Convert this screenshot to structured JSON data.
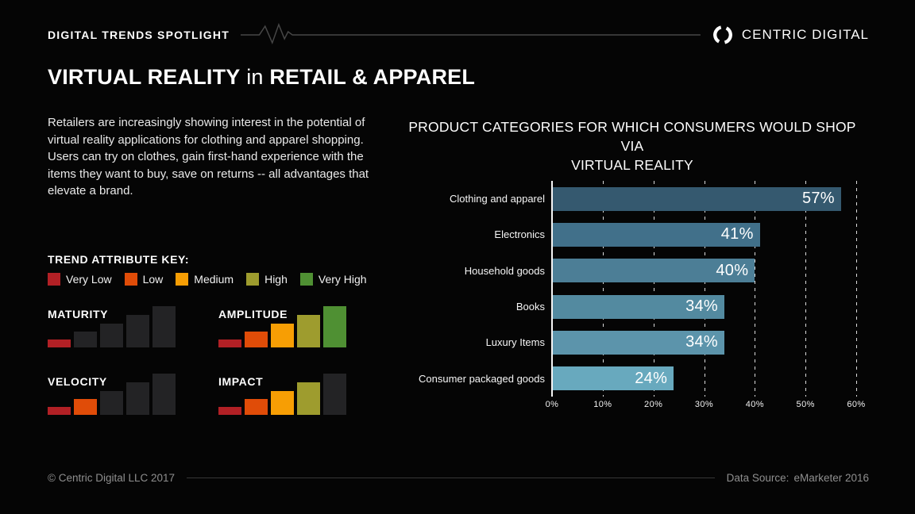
{
  "header": {
    "eyebrow": "DIGITAL TRENDS SPOTLIGHT",
    "brand": "CENTRIC DIGITAL"
  },
  "title": {
    "bold1": "VIRTUAL REALITY",
    "mid": "in",
    "bold2": "RETAIL & APPAREL"
  },
  "intro": "Retailers are increasingly showing interest in the potential of virtual reality applications for clothing and apparel shopping. Users can try on clothes, gain first-hand experience with the items they want to buy, save on returns -- all advantages that elevate a brand.",
  "trend_key": {
    "title": "TREND ATTRIBUTE KEY:"
  },
  "chart_display": {
    "title_line1": "PRODUCT CATEGORIES FOR WHICH CONSUMERS WOULD SHOP VIA",
    "title_line2": "VIRTUAL REALITY"
  },
  "chart_data": [
    {
      "type": "bar",
      "orientation": "horizontal",
      "title": "PRODUCT CATEGORIES FOR WHICH CONSUMERS WOULD SHOP VIA VIRTUAL REALITY",
      "categories": [
        "Clothing and apparel",
        "Electronics",
        "Household goods",
        "Books",
        "Luxury Items",
        "Consumer packaged goods"
      ],
      "values": [
        57,
        41,
        40,
        34,
        34,
        24
      ],
      "value_labels": [
        "57%",
        "41%",
        "40%",
        "34%",
        "34%",
        "24%"
      ],
      "bar_colors": [
        "#35596f",
        "#41708a",
        "#4c7e96",
        "#538aa0",
        "#5c94ab",
        "#68a9be"
      ],
      "xlabel": "",
      "ylabel": "",
      "xlim": [
        0,
        60
      ],
      "x_ticks": [
        "0%",
        "10%",
        "20%",
        "30%",
        "40%",
        "50%",
        "60%"
      ],
      "grid": "dashed vertical gridlines every 10%, solid axis line at 0%",
      "legend": "none"
    },
    {
      "type": "bar",
      "name": "trend-attribute-meters",
      "scale_labels": [
        "Very Low",
        "Low",
        "Medium",
        "High",
        "Very High"
      ],
      "scale_colors": [
        "#b22025",
        "#e04c08",
        "#f79e04",
        "#9e9c2e",
        "#4f9033"
      ],
      "inactive_color": "#232325",
      "categories": [
        "MATURITY",
        "AMPLITUDE",
        "VELOCITY",
        "IMPACT"
      ],
      "values": [
        1,
        5,
        2,
        4
      ],
      "value_labels": [
        "Very Low",
        "Very High",
        "Low",
        "High"
      ],
      "ylim": [
        0,
        5
      ]
    }
  ],
  "footer": {
    "copyright": "© Centric Digital LLC 2017",
    "source_label": "Data Source:",
    "source_value": "eMarketer 2016"
  }
}
